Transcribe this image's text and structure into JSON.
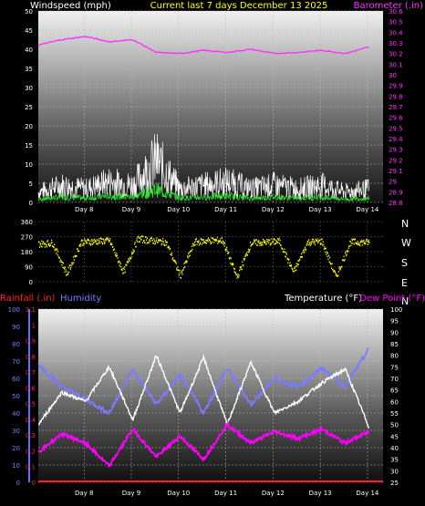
{
  "header": {
    "left_title": "Windspeed (mph)",
    "center_title": "Current last 7 days December 13 2025",
    "right_title": "Barometer (.in)"
  },
  "colors": {
    "background": "#000000",
    "windspeed": "#ffffff",
    "gust": "#ffffff",
    "avg_wind": "#33ee33",
    "barometer": "#ff33ff",
    "direction": "#ffff00",
    "rainfall": "#ff2222",
    "humidity": "#7b7bff",
    "temperature": "#ffffff",
    "dewpoint": "#ff00ff",
    "title_yellow": "#ffff00",
    "title_magenta": "#ff33ff"
  },
  "chart_data": [
    {
      "type": "line",
      "title": "Current last 7 days December 13 2025",
      "ylabel": "Windspeed (mph)",
      "y2label": "Barometer (.in)",
      "ylim": [
        0,
        50
      ],
      "y2lim": [
        28.8,
        30.6
      ],
      "grid": true,
      "x_ticks": [
        "Day 8",
        "Day 9",
        "Day 10",
        "Day 11",
        "Day 12",
        "Day 13",
        "Day 14"
      ],
      "y_ticks": [
        "0",
        "5",
        "10",
        "15",
        "20",
        "25",
        "30",
        "35",
        "40",
        "45",
        "50"
      ],
      "y2_ticks": [
        "28.8",
        "28.9",
        "29",
        "29.1",
        "29.2",
        "29.3",
        "29.4",
        "29.5",
        "29.6",
        "29.7",
        "29.8",
        "29.9",
        "30",
        "30.1",
        "30.2",
        "30.3",
        "30.4",
        "30.5",
        "30.6"
      ],
      "x": [
        0,
        0.5,
        1,
        1.5,
        2,
        2.5,
        3,
        3.5,
        4,
        4.5,
        5,
        5.5,
        6,
        6.5,
        7
      ],
      "series": [
        {
          "key": "wind",
          "values": [
            3,
            5,
            4,
            6,
            5,
            12,
            4,
            5,
            6,
            4,
            5,
            4,
            5,
            3,
            4
          ]
        },
        {
          "key": "barometer",
          "axis": "y2",
          "values": [
            30.28,
            30.33,
            30.36,
            30.31,
            30.33,
            30.21,
            30.2,
            30.23,
            30.21,
            30.24,
            30.2,
            30.21,
            30.23,
            30.2,
            30.26
          ]
        }
      ]
    },
    {
      "type": "scatter",
      "ylim": [
        0,
        360
      ],
      "y_ticks": [
        "0",
        "90",
        "180",
        "270",
        "360"
      ],
      "compass_labels": [
        "N",
        "W",
        "S",
        "E",
        "N"
      ],
      "x": [
        0,
        0.3,
        0.6,
        0.9,
        1.2,
        1.5,
        1.8,
        2.1,
        2.4,
        2.7,
        3.0,
        3.3,
        3.6,
        3.9,
        4.2,
        4.5,
        4.8,
        5.1,
        5.4,
        5.7,
        6.0,
        6.3,
        6.6,
        7.0
      ],
      "series": [
        {
          "key": "direction",
          "values": [
            230,
            235,
            50,
            240,
            245,
            250,
            60,
            260,
            250,
            240,
            40,
            240,
            250,
            250,
            30,
            235,
            240,
            245,
            60,
            240,
            245,
            30,
            240,
            240
          ]
        }
      ]
    },
    {
      "type": "line",
      "ylabel": "Humidity",
      "y2label": "Temperature (°F)",
      "y3label": "Dew Point (°F)",
      "y0label": "Rainfall (.in)",
      "ylim": [
        0,
        100
      ],
      "y2lim": [
        25,
        100
      ],
      "rainlim": [
        0,
        1.1
      ],
      "grid": true,
      "x_ticks": [
        "Day 8",
        "Day 9",
        "Day 10",
        "Day 11",
        "Day 12",
        "Day 13",
        "Day 14"
      ],
      "humidity_ticks": [
        "0",
        "10",
        "20",
        "30",
        "40",
        "50",
        "60",
        "70",
        "80",
        "90",
        "100"
      ],
      "rain_ticks": [
        "0",
        "0.1",
        "0.2",
        "0.3",
        "0.4",
        "0.5",
        "0.6",
        "0.7",
        "0.8",
        "0.9",
        "1",
        "1.1"
      ],
      "temp_ticks": [
        "25",
        "30",
        "35",
        "40",
        "45",
        "50",
        "55",
        "60",
        "65",
        "70",
        "75",
        "80",
        "85",
        "90",
        "95",
        "100"
      ],
      "x": [
        0,
        0.5,
        1,
        1.5,
        2,
        2.5,
        3,
        3.5,
        4,
        4.5,
        5,
        5.5,
        6,
        6.5,
        7
      ],
      "series": [
        {
          "key": "humidity",
          "values": [
            68,
            55,
            48,
            40,
            65,
            45,
            62,
            40,
            66,
            45,
            60,
            55,
            66,
            55,
            77
          ]
        },
        {
          "key": "temperature",
          "axis": "y2",
          "values": [
            50,
            64,
            60,
            75,
            52,
            80,
            55,
            79,
            50,
            77,
            55,
            60,
            68,
            74,
            49
          ]
        },
        {
          "key": "dewpoint",
          "axis": "y2",
          "values": [
            38,
            46,
            42,
            32,
            48,
            36,
            45,
            35,
            50,
            42,
            47,
            44,
            48,
            42,
            47
          ]
        },
        {
          "key": "rainfall",
          "axis": "rain",
          "values": [
            0,
            0,
            0,
            0,
            0,
            0,
            0,
            0,
            0,
            0,
            0,
            0,
            0,
            0,
            0
          ]
        }
      ]
    }
  ]
}
